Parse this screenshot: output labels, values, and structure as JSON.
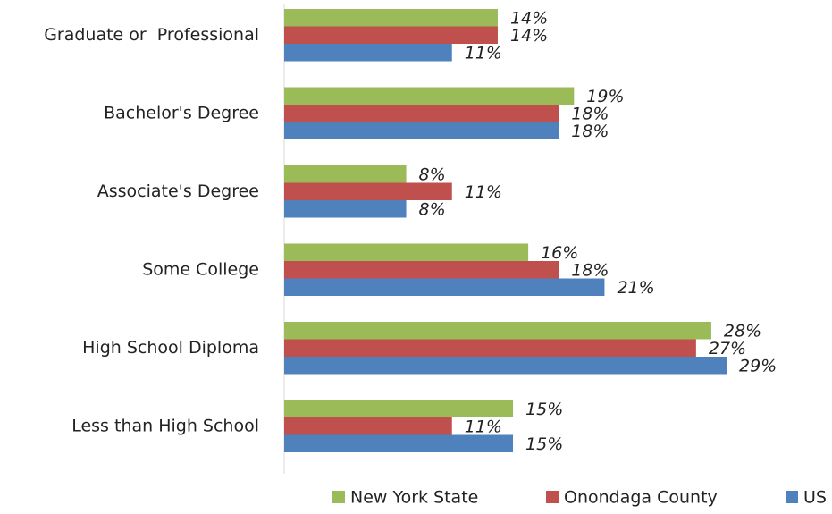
{
  "chart_data": {
    "type": "bar",
    "orientation": "horizontal",
    "categories": [
      "Graduate or  Professional",
      "Bachelor's Degree",
      "Associate's Degree",
      "Some College",
      "High School Diploma",
      "Less than High School"
    ],
    "series": [
      {
        "name": "New York State",
        "color": "#9bbb59",
        "values": [
          14,
          19,
          8,
          16,
          28,
          15
        ],
        "value_labels": [
          "14%",
          "19%",
          "8%",
          "16%",
          "28%",
          "15%"
        ]
      },
      {
        "name": "Onondaga County",
        "color": "#c0504d",
        "values": [
          14,
          18,
          11,
          18,
          27,
          11
        ],
        "value_labels": [
          "14%",
          "18%",
          "11%",
          "18%",
          "27%",
          "11%"
        ]
      },
      {
        "name": "US",
        "color": "#4f81bd",
        "values": [
          11,
          18,
          8,
          21,
          29,
          15
        ],
        "value_labels": [
          "11%",
          "18%",
          "8%",
          "21%",
          "29%",
          "15%"
        ]
      }
    ],
    "legend": "bottom"
  }
}
